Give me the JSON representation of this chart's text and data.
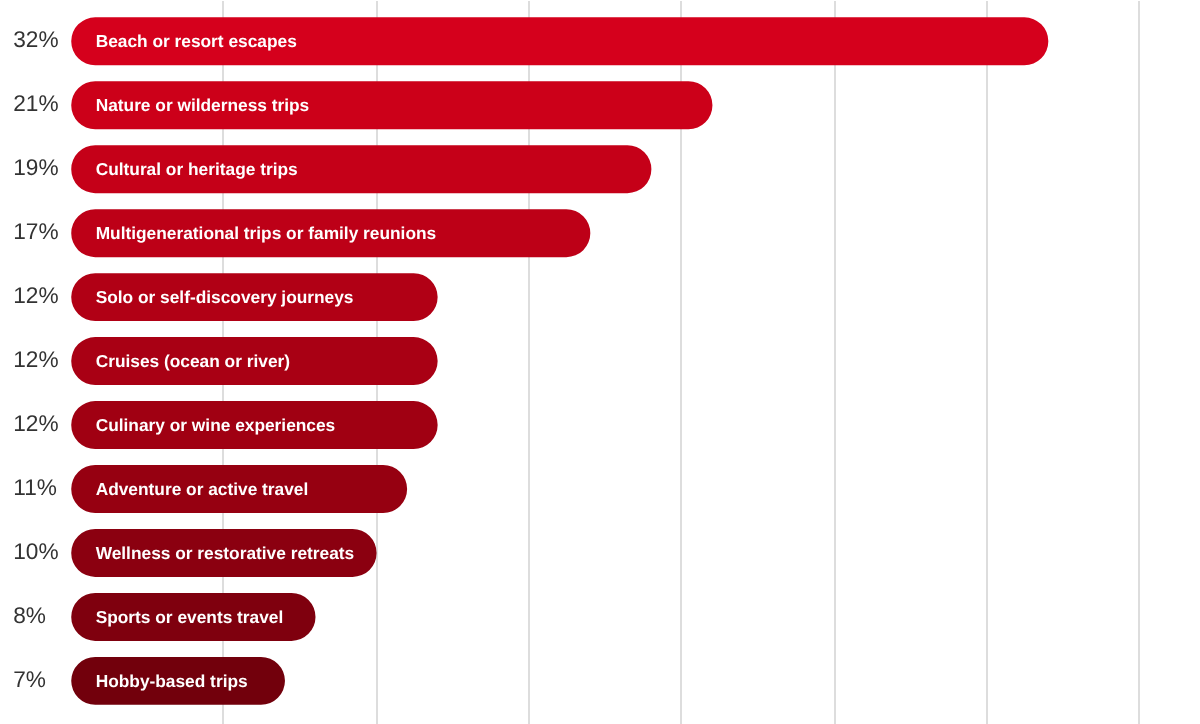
{
  "chart_data": {
    "type": "bar",
    "orientation": "horizontal",
    "categories": [
      "Beach or resort escapes",
      "Nature or wilderness trips",
      "Cultural or heritage trips",
      "Multigenerational trips or family reunions",
      "Solo or self-discovery journeys",
      "Cruises (ocean or river)",
      "Culinary or wine experiences",
      "Adventure or active travel",
      "Wellness or restorative retreats",
      "Sports or events travel",
      "Hobby-based trips"
    ],
    "values": [
      32,
      21,
      19,
      17,
      12,
      12,
      12,
      11,
      10,
      8,
      7
    ],
    "value_labels": [
      "32%",
      "21%",
      "19%",
      "17%",
      "12%",
      "12%",
      "12%",
      "11%",
      "10%",
      "8%",
      "7%"
    ],
    "colors": [
      "#d5001c",
      "#cc0019",
      "#c50018",
      "#bd0017",
      "#b10015",
      "#a90014",
      "#a00012",
      "#960011",
      "#8b0010",
      "#7f000e",
      "#72000c"
    ],
    "xlim": [
      -2.3,
      37
    ],
    "xticks": [
      {
        "value": 5,
        "label": null
      },
      {
        "value": 10,
        "label": null
      },
      {
        "value": 15,
        "label": null
      },
      {
        "value": 20,
        "label": null
      },
      {
        "value": 25,
        "label": null
      },
      {
        "value": 30,
        "label": null
      },
      {
        "value": 35,
        "label": null
      }
    ],
    "grid": "x",
    "tick_labels": false
  }
}
